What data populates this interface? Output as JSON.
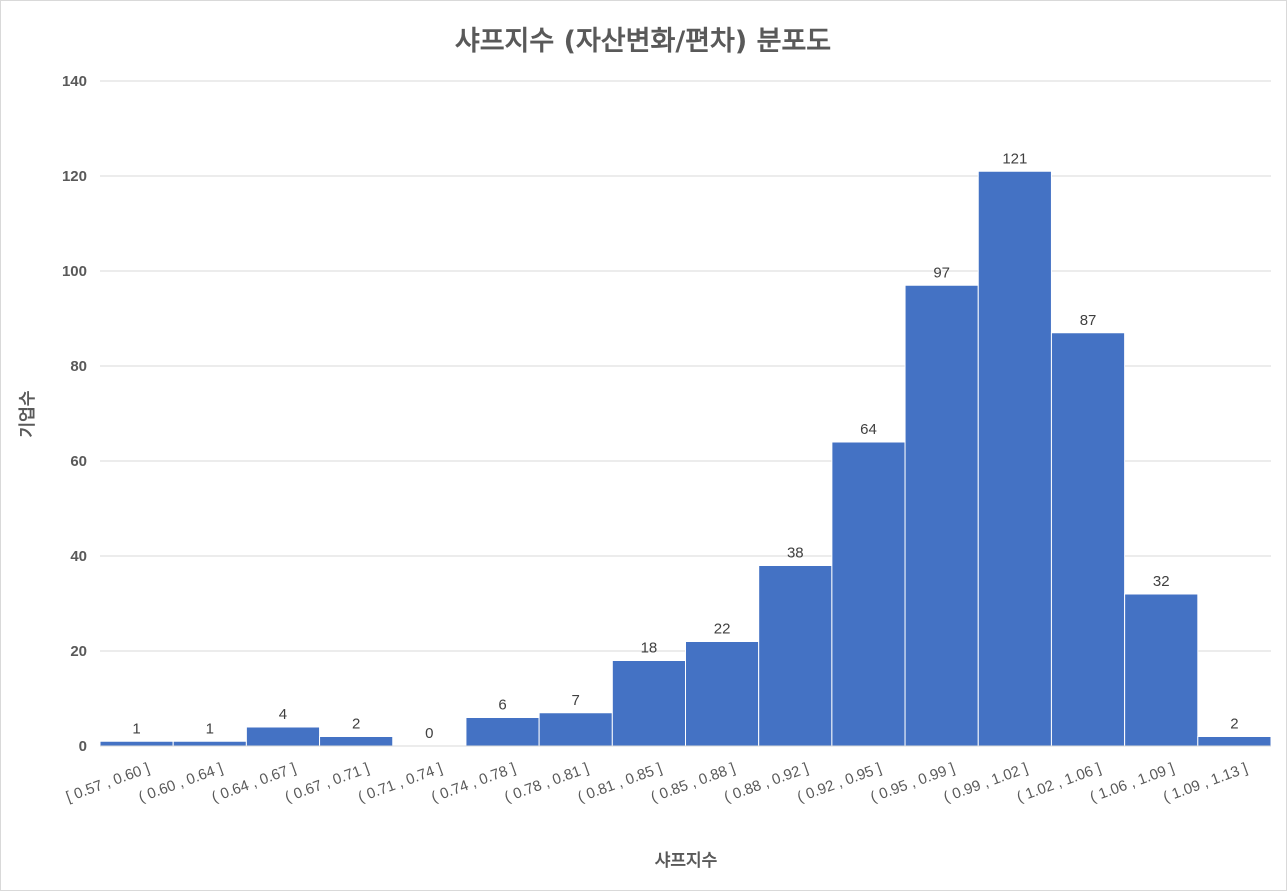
{
  "chart_data": {
    "type": "bar",
    "title": "샤프지수 (자산변화/편차) 분포도",
    "xlabel": "샤프지수",
    "ylabel": "기업수",
    "ylim": [
      0,
      140
    ],
    "yticks": [
      "0",
      "20",
      "40",
      "60",
      "80",
      "100",
      "120",
      "140"
    ],
    "grid": true,
    "legend": "none",
    "bar_color": "#4472C4",
    "categories": [
      "[ 0.57 , 0.60 ]",
      "( 0.60 , 0.64 ]",
      "( 0.64 , 0.67 ]",
      "( 0.67 , 0.71 ]",
      "( 0.71 , 0.74 ]",
      "( 0.74 , 0.78 ]",
      "( 0.78 , 0.81 ]",
      "( 0.81 , 0.85 ]",
      "( 0.85 , 0.88 ]",
      "( 0.88 , 0.92 ]",
      "( 0.92 , 0.95 ]",
      "( 0.95 , 0.99 ]",
      "( 0.99 , 1.02 ]",
      "( 1.02 , 1.06 ]",
      "( 1.06 , 1.09 ]",
      "( 1.09 , 1.13 ]"
    ],
    "values": [
      1,
      1,
      4,
      2,
      0,
      6,
      7,
      18,
      22,
      38,
      64,
      97,
      121,
      87,
      32,
      2
    ]
  }
}
